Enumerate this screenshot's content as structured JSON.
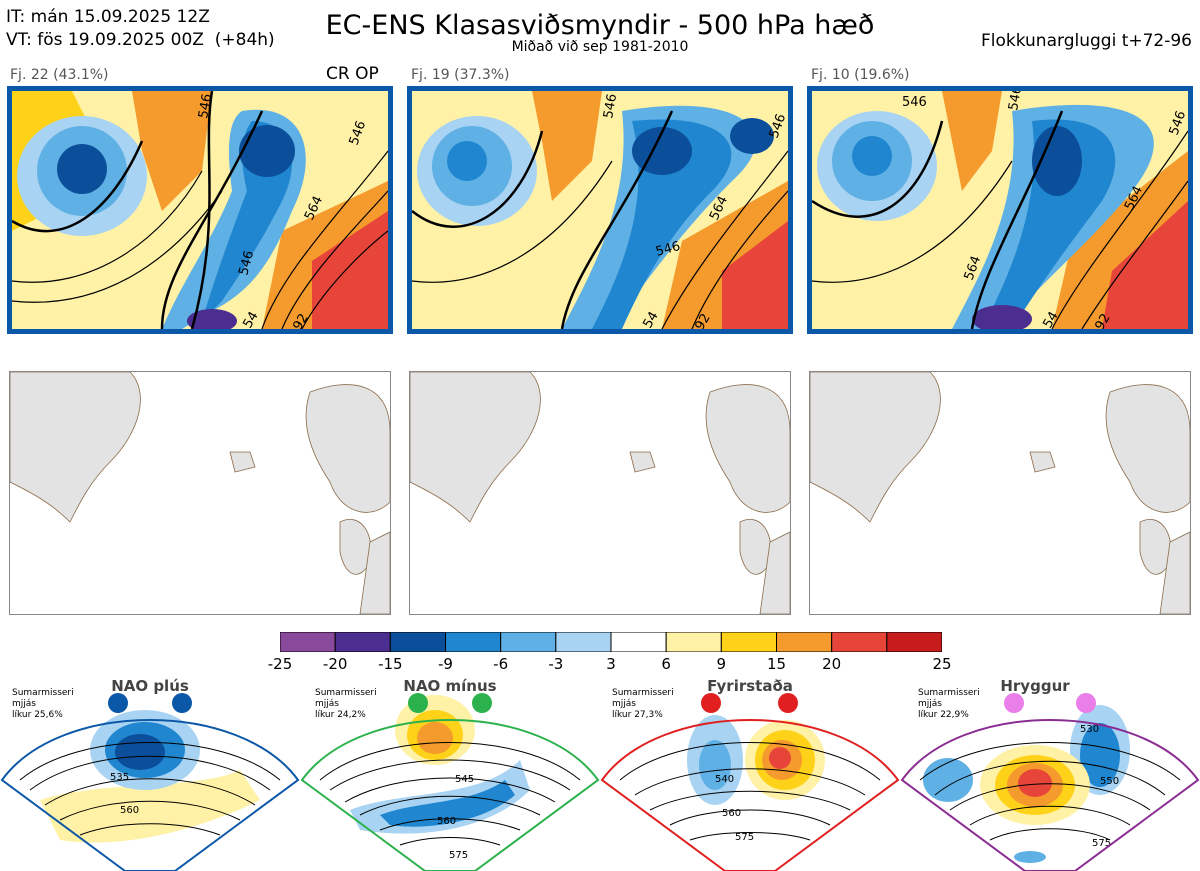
{
  "header": {
    "it_line": "IT: mán 15.09.2025 12Z",
    "vt_line": "VT: fös 19.09.2025 00Z  (+84h)",
    "title": "EC-ENS Klasasviðsmyndir - 500 hPa hæð",
    "subtitle": "Miðað við sep 1981-2010",
    "window_label": "Flokkunargluggi t+72-96"
  },
  "panels": [
    {
      "label": "Fj. 22 (43.1%)",
      "extra": "CR OP",
      "contours": [
        "546",
        "546",
        "564",
        "546",
        "54",
        "92"
      ]
    },
    {
      "label": "Fj. 19 (37.3%)",
      "extra": "",
      "contours": [
        "546",
        "546",
        "564",
        "546",
        "54",
        "92"
      ]
    },
    {
      "label": "Fj. 10 (19.6%)",
      "extra": "",
      "contours": [
        "546",
        "546",
        "564",
        "546",
        "54",
        "92"
      ]
    }
  ],
  "colorbar": {
    "colors": [
      "#8a4a9c",
      "#4b2e8f",
      "#0b4f9a",
      "#1f86cf",
      "#5fb0e5",
      "#a9d3f2",
      "#ffffff",
      "#fff2a6",
      "#ffd21a",
      "#f59a2c",
      "#e8453a",
      "#c61c1c",
      "#a01010"
    ],
    "ticks": [
      "-25",
      "-20",
      "-15",
      "-9",
      "-6",
      "-3",
      "3",
      "6",
      "9",
      "15",
      "20",
      "25"
    ]
  },
  "regimes": [
    {
      "name": "NAO plús",
      "prob_text": "Sumarmisseri\nmjjás\nlíkur 25,6%",
      "color": "#0b57a8",
      "contours": [
        "535",
        "560"
      ]
    },
    {
      "name": "NAO mínus",
      "prob_text": "Sumarmisseri\nmjjás\nlíkur 24,2%",
      "color": "#2bb24c",
      "contours": [
        "545",
        "560",
        "575"
      ]
    },
    {
      "name": "Fyrirstaða",
      "prob_text": "Sumarmisseri\nmjjás\nlíkur 27,3%",
      "color": "#e02020",
      "contours": [
        "540",
        "560",
        "575"
      ]
    },
    {
      "name": "Hryggur",
      "prob_text": "Sumarmisseri\nmjjás\nlíkur 22,9%",
      "color": "#8b2c93",
      "contours": [
        "530",
        "550",
        "575"
      ]
    }
  ]
}
